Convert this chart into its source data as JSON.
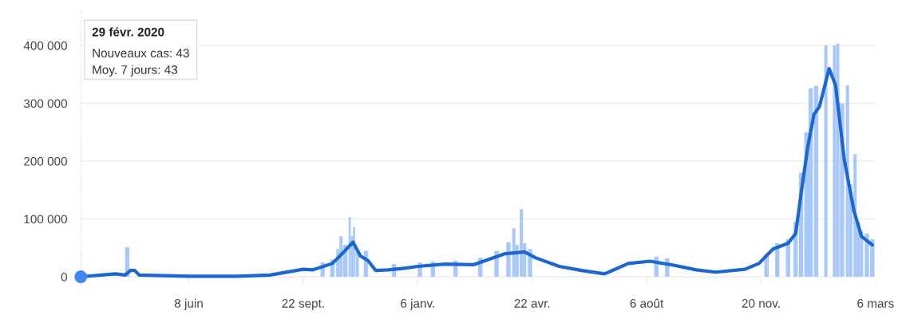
{
  "chart_data": {
    "type": "bar",
    "xlim": [
      "2020-02-29",
      "2022-03-06"
    ],
    "xticks": [
      {
        "value": "2020-06-08",
        "label": "8 juin"
      },
      {
        "value": "2020-09-22",
        "label": "22 sept."
      },
      {
        "value": "2021-01-06",
        "label": "6 janv."
      },
      {
        "value": "2021-04-22",
        "label": "22 avr."
      },
      {
        "value": "2021-08-06",
        "label": "6 août"
      },
      {
        "value": "2021-11-20",
        "label": "20 nov."
      },
      {
        "value": "2022-03-06",
        "label": "6 mars"
      }
    ],
    "ylim": [
      -15000,
      460000
    ],
    "yticks": [
      {
        "value": 0,
        "label": "0"
      },
      {
        "value": 100000,
        "label": "100 000"
      },
      {
        "value": 200000,
        "label": "200 000"
      },
      {
        "value": 300000,
        "label": "300 000"
      },
      {
        "value": 400000,
        "label": "400 000"
      }
    ],
    "grid": "y",
    "series": [
      {
        "color": "#a8c7fa",
        "x": [
          "2020-04-12",
          "2020-10-10",
          "2020-10-19",
          "2020-10-24",
          "2020-10-27",
          "2020-10-31",
          "2020-11-04",
          "2020-11-06",
          "2020-11-08",
          "2020-11-11",
          "2020-11-19",
          "2020-12-15",
          "2021-01-08",
          "2021-01-20",
          "2021-02-10",
          "2021-03-05",
          "2021-03-20",
          "2021-03-31",
          "2021-04-05",
          "2021-04-08",
          "2021-04-12",
          "2021-04-15",
          "2021-04-20",
          "2021-08-15",
          "2021-08-25",
          "2021-11-25",
          "2021-12-05",
          "2021-12-15",
          "2021-12-22",
          "2021-12-27",
          "2022-01-01",
          "2022-01-05",
          "2022-01-10",
          "2022-01-16",
          "2022-01-19",
          "2022-01-24",
          "2022-01-27",
          "2022-01-30",
          "2022-02-03",
          "2022-02-08",
          "2022-02-11",
          "2022-02-15",
          "2022-02-18",
          "2022-02-21",
          "2022-02-26",
          "2022-03-03"
        ],
        "values": [
          51000,
          25000,
          30000,
          48000,
          70000,
          55000,
          103000,
          70000,
          86000,
          48000,
          45000,
          22000,
          25000,
          27000,
          28000,
          33000,
          45000,
          60000,
          84000,
          55000,
          117000,
          58000,
          48000,
          35000,
          32000,
          40000,
          58000,
          65000,
          95000,
          180000,
          250000,
          326000,
          330000,
          null,
          400000,
          null,
          400000,
          403000,
          300000,
          331000,
          160000,
          212000,
          95000,
          80000,
          75000,
          65000
        ]
      },
      {
        "type": "line",
        "color": "#1a66d2",
        "x": [
          "2020-02-29",
          "2020-04-01",
          "2020-04-10",
          "2020-04-15",
          "2020-04-19",
          "2020-04-23",
          "2020-06-08",
          "2020-07-23",
          "2020-08-22",
          "2020-09-22",
          "2020-10-01",
          "2020-10-19",
          "2020-10-28",
          "2020-11-07",
          "2020-11-14",
          "2020-11-21",
          "2020-11-28",
          "2020-12-10",
          "2020-12-26",
          "2021-01-06",
          "2021-01-31",
          "2021-02-27",
          "2021-03-28",
          "2021-04-15",
          "2021-04-25",
          "2021-05-17",
          "2021-06-07",
          "2021-06-28",
          "2021-07-20",
          "2021-08-09",
          "2021-08-31",
          "2021-09-21",
          "2021-10-09",
          "2021-11-05",
          "2021-11-18",
          "2021-12-01",
          "2021-12-15",
          "2021-12-22",
          "2021-12-27",
          "2022-01-02",
          "2022-01-08",
          "2022-01-13",
          "2022-01-22",
          "2022-01-28",
          "2022-02-05",
          "2022-02-14",
          "2022-02-21",
          "2022-03-03"
        ],
        "values": [
          43,
          5000,
          3000,
          11000,
          11000,
          3000,
          1000,
          1000,
          3000,
          13000,
          12000,
          23000,
          40000,
          60000,
          36000,
          28000,
          11000,
          12000,
          15000,
          18000,
          22000,
          21000,
          40000,
          43000,
          33000,
          18000,
          11000,
          5000,
          23000,
          27000,
          20000,
          12000,
          8000,
          13000,
          23000,
          48000,
          58000,
          75000,
          143000,
          222000,
          281000,
          294000,
          360000,
          331000,
          203000,
          114000,
          70000,
          55000
        ]
      },
      {
        "type": "scatter",
        "color": "#4285f4",
        "marker": "circle",
        "x": [
          "2020-02-29"
        ],
        "values": [
          43
        ]
      }
    ],
    "ref_lines": [
      {
        "axis": "x",
        "value": "2020-02-29",
        "color": "#bbbbbb",
        "line_style": "dotted"
      }
    ],
    "annotations": [
      "29 févr. 2020\nNouveaux cas: 43\nMoy. 7 jours: 43"
    ]
  }
}
